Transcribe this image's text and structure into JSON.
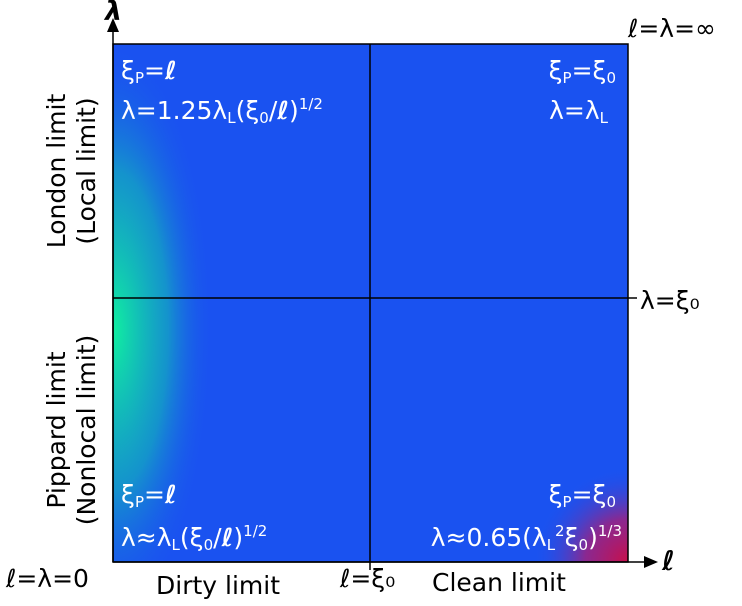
{
  "axes": {
    "y_label": "λ",
    "x_label": "ℓ",
    "origin_label": "ℓ=λ=0",
    "top_right_label": "ℓ=λ=∞",
    "x_tick_label": "ℓ=ξ₀",
    "y_tick_label": "λ=ξ₀"
  },
  "regions": {
    "x_left": "Dirty limit",
    "x_right": "Clean limit",
    "y_top_line1": "London limit",
    "y_top_line2": "(Local limit)",
    "y_bottom_line1": "Pippard limit",
    "y_bottom_line2": "(Nonlocal limit)"
  },
  "quadrants": {
    "top_left": {
      "xi": "ξP=ℓ",
      "lambda": "λ=1.25λL(ξ0/ℓ)1/2"
    },
    "top_right": {
      "xi": "ξP=ξ0",
      "lambda": "λ=λL"
    },
    "bottom_left": {
      "xi": "ξP=ℓ",
      "lambda": "λ≈λL(ξ0/ℓ)1/2"
    },
    "bottom_right": {
      "xi": "ξP=ξ0",
      "lambda": "λ≈0.65(λL2ξ0)1/3"
    }
  },
  "colors": {
    "background": "#1a52f0",
    "glow_left": "#10f0a0",
    "glow_corner": "#c8104a",
    "divider": "#000000",
    "text_inside": "#ffffff"
  }
}
